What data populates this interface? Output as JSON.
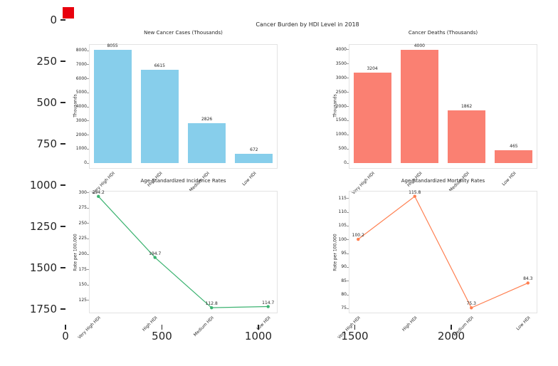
{
  "outer_axes": {
    "y_ticks": [
      "0",
      "250",
      "500",
      "750",
      "1000",
      "1250",
      "1500",
      "1750"
    ],
    "x_ticks": [
      "0",
      "500",
      "1000",
      "1500",
      "2000"
    ],
    "marker_color": "#e8000d"
  },
  "figure": {
    "title": "Cancer Burden by HDI Level in 2018"
  },
  "chart_data": [
    {
      "type": "bar",
      "title": "New Cancer Cases (Thousands)",
      "ylabel": "Thousands",
      "categories": [
        "Very High HDI",
        "High HDI",
        "Medium HDI",
        "Low HDI"
      ],
      "values": [
        8055,
        6615,
        2826,
        672
      ],
      "labels": [
        "8055",
        "6615",
        "2826",
        "672"
      ],
      "yticks": [
        0,
        1000,
        2000,
        3000,
        4000,
        5000,
        6000,
        7000,
        8000
      ],
      "ylim": [
        -403,
        8458
      ],
      "grid": false,
      "color": "#87CEEB"
    },
    {
      "type": "bar",
      "title": "Cancer Deaths (Thousands)",
      "ylabel": "Thousands",
      "categories": [
        "Very High HDI",
        "High HDI",
        "Medium HDI",
        "Low HDI"
      ],
      "values": [
        3204,
        4000,
        1862,
        465
      ],
      "labels": [
        "3204",
        "4000",
        "1862",
        "465"
      ],
      "yticks": [
        0,
        500,
        1000,
        1500,
        2000,
        2500,
        3000,
        3500,
        4000
      ],
      "ylim": [
        -200,
        4200
      ],
      "grid": false,
      "color": "#FA8072"
    },
    {
      "type": "line",
      "title": "Age-Standardized Incidence Rates",
      "ylabel": "Rate per 100,000",
      "categories": [
        "Very High HDI",
        "High HDI",
        "Medium HDI",
        "Low HDI"
      ],
      "values": [
        294.2,
        194.7,
        112.8,
        114.7
      ],
      "labels": [
        "294.2",
        "194.7",
        "112.8",
        "114.7"
      ],
      "yticks": [
        125,
        150,
        175,
        200,
        225,
        250,
        275,
        300
      ],
      "ylim": [
        103.7,
        303.3
      ],
      "grid": false,
      "color": "#3CB371"
    },
    {
      "type": "line",
      "title": "Age-Standardized Mortality Rates",
      "ylabel": "Rate per 100,000",
      "categories": [
        "Very High HDI",
        "High HDI",
        "Medium HDI",
        "Low HDI"
      ],
      "values": [
        100.2,
        115.8,
        75.3,
        84.3
      ],
      "labels": [
        "100.2",
        "115.8",
        "75.3",
        "84.3"
      ],
      "yticks": [
        75,
        80,
        85,
        90,
        95,
        100,
        105,
        110,
        115
      ],
      "ylim": [
        73.3,
        117.8
      ],
      "grid": false,
      "color": "#FF7F50"
    }
  ]
}
